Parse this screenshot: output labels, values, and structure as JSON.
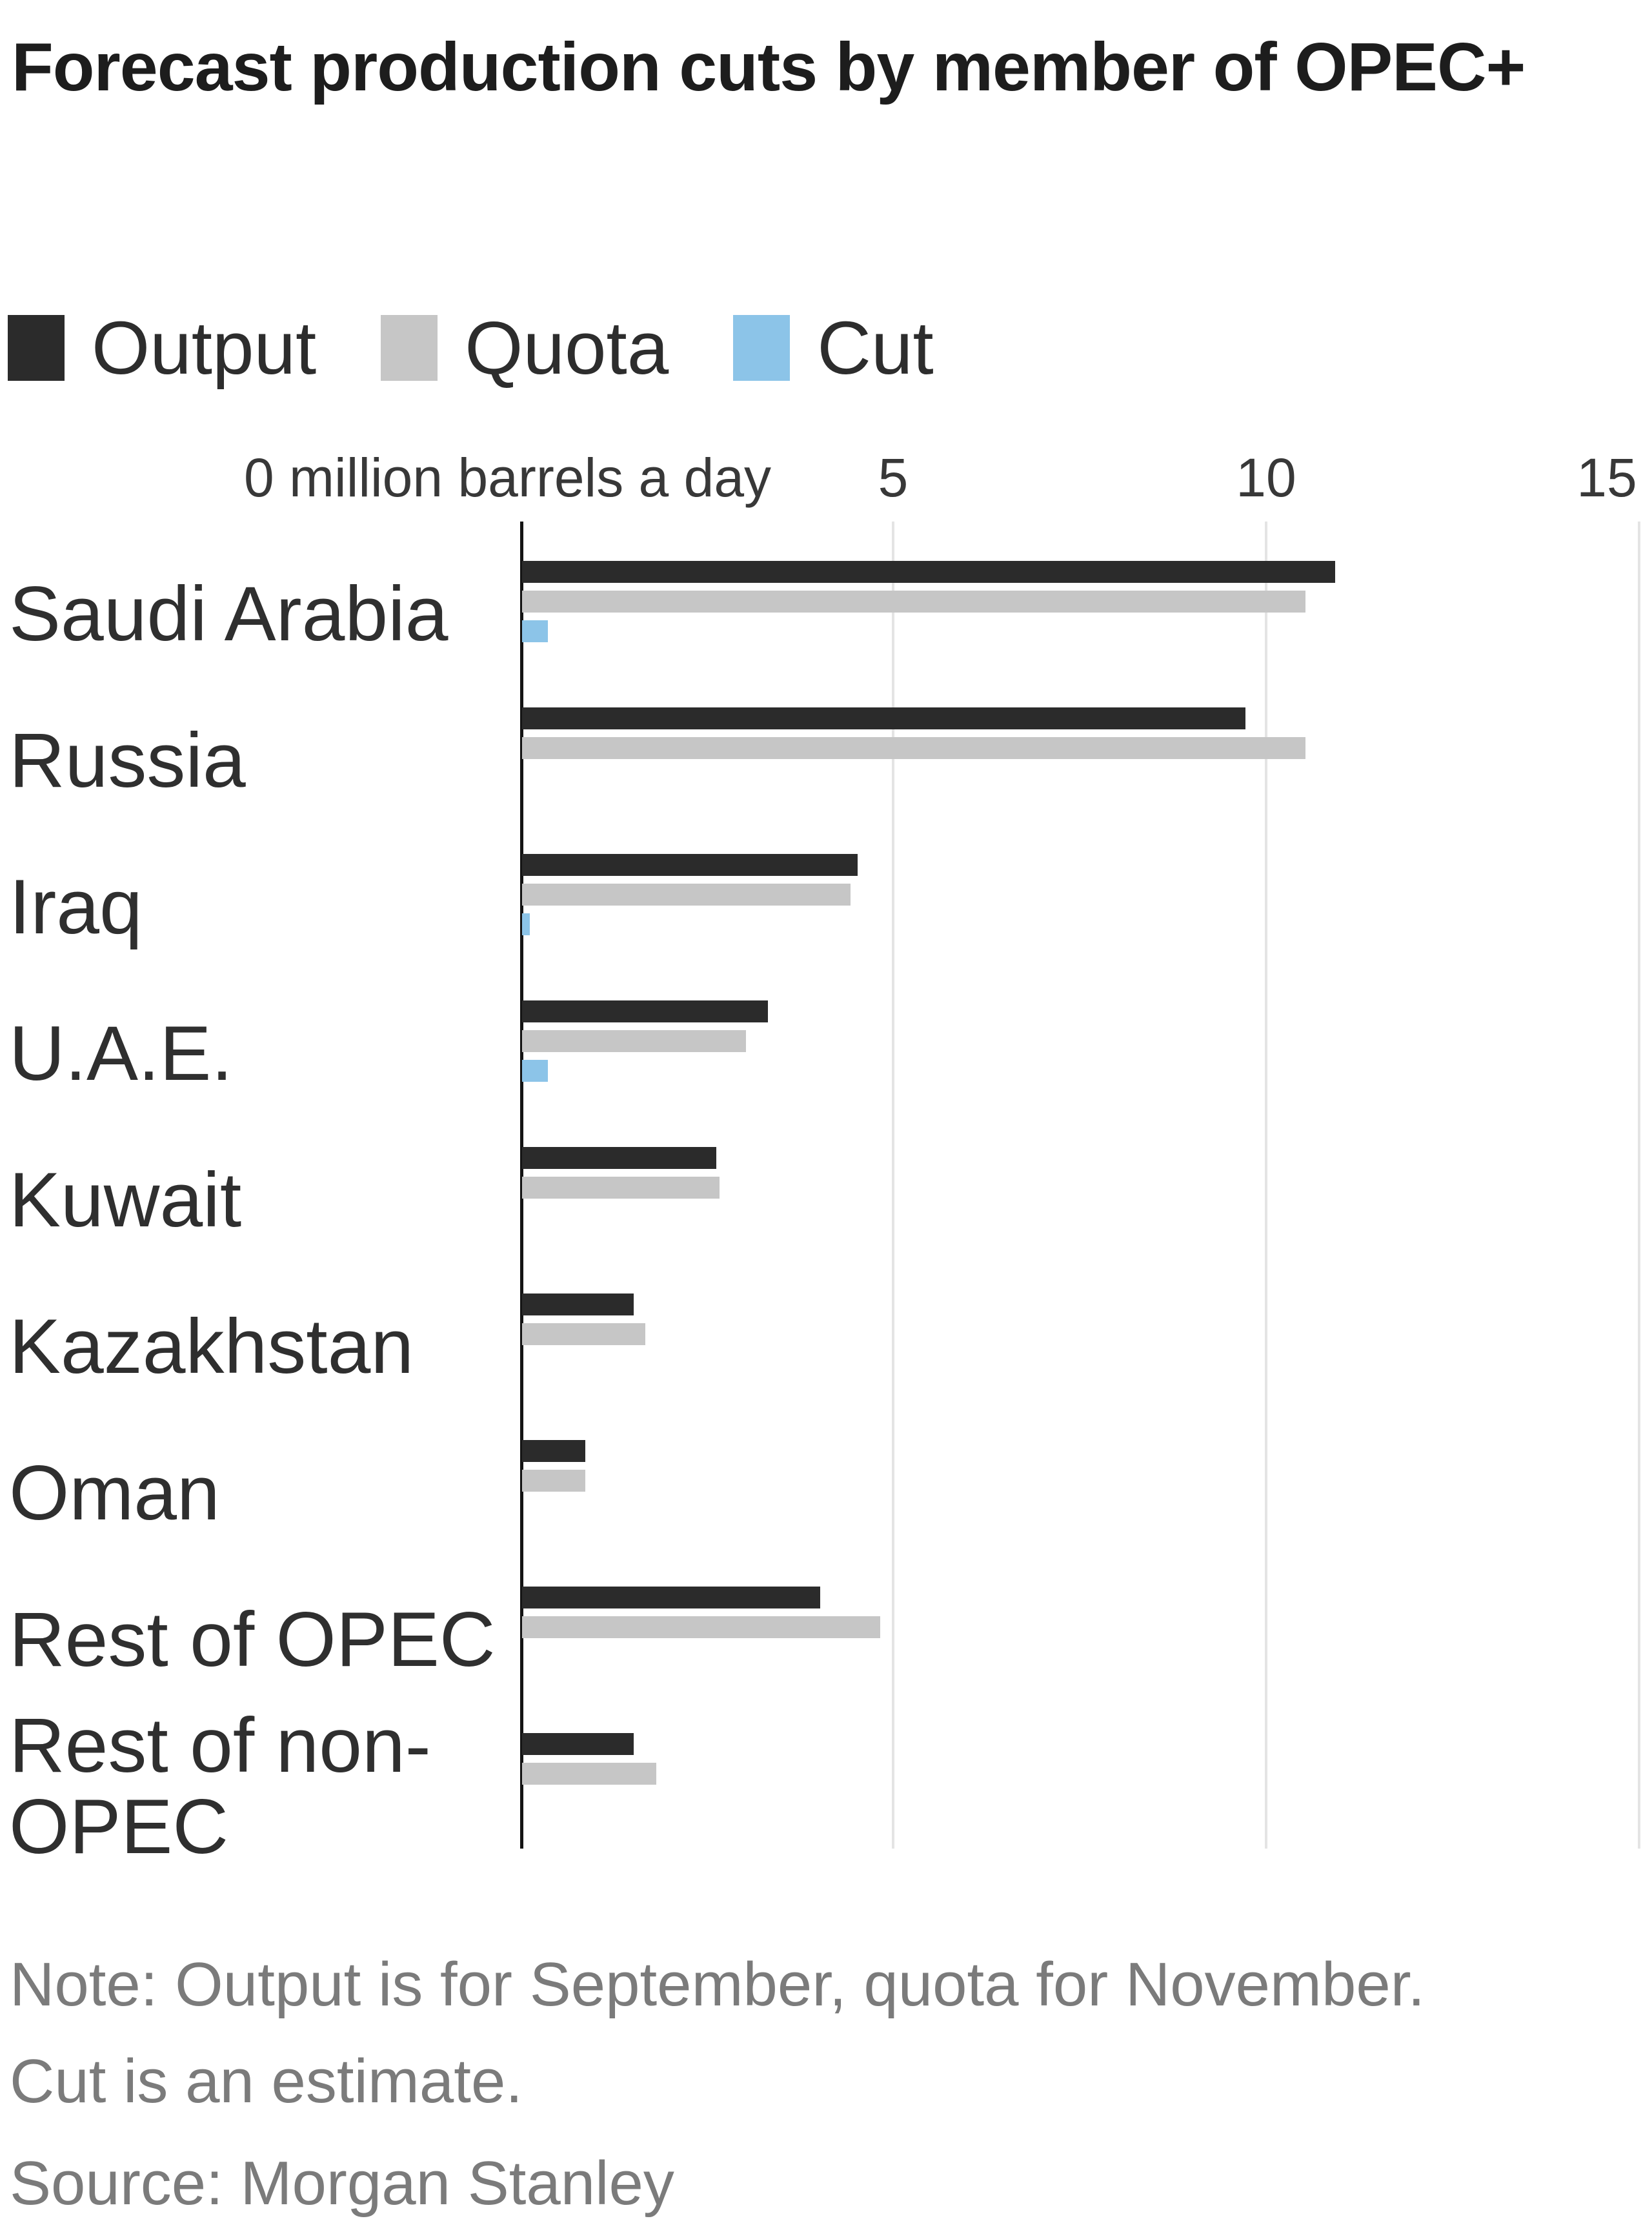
{
  "title": "Forecast production cuts by member of OPEC+",
  "legend": [
    {
      "label": "Output",
      "color": "#2b2b2b"
    },
    {
      "label": "Quota",
      "color": "#c6c6c6"
    },
    {
      "label": "Cut",
      "color": "#8cc4e8"
    }
  ],
  "axis": {
    "unit_label": "0 million barrels a day",
    "ticks": [
      5,
      10,
      15
    ],
    "max": 15
  },
  "notes": [
    "Note: Output is for September, quota for November.",
    "Cut is an estimate."
  ],
  "source": "Source: Morgan Stanley",
  "colors": {
    "axis_line": "#141414",
    "gridline": "#e4e4e4",
    "title_text": "#1d1d1d",
    "label_text": "#2f2f2f",
    "tick_text": "#383838",
    "note_text": "#7b7b7b"
  },
  "chart_data": {
    "type": "bar",
    "orientation": "horizontal",
    "title": "Forecast production cuts by member of OPEC+",
    "xlabel": "million barrels a day",
    "xlim": [
      0,
      15
    ],
    "grid": "vertical",
    "legend_position": "top",
    "categories": [
      "Saudi Arabia",
      "Russia",
      "Iraq",
      "U.A.E.",
      "Kuwait",
      "Kazakhstan",
      "Oman",
      "Rest of OPEC",
      "Rest of non-OPEC"
    ],
    "series": [
      {
        "name": "Output",
        "color": "#2b2b2b",
        "values": [
          10.9,
          9.7,
          4.5,
          3.3,
          2.6,
          1.5,
          0.85,
          4.0,
          1.5
        ]
      },
      {
        "name": "Quota",
        "color": "#c6c6c6",
        "values": [
          10.5,
          10.5,
          4.4,
          3.0,
          2.65,
          1.65,
          0.85,
          4.8,
          1.8
        ]
      },
      {
        "name": "Cut",
        "color": "#8cc4e8",
        "values": [
          0.35,
          0,
          0.1,
          0.35,
          0,
          0,
          0,
          0,
          0
        ]
      }
    ]
  }
}
